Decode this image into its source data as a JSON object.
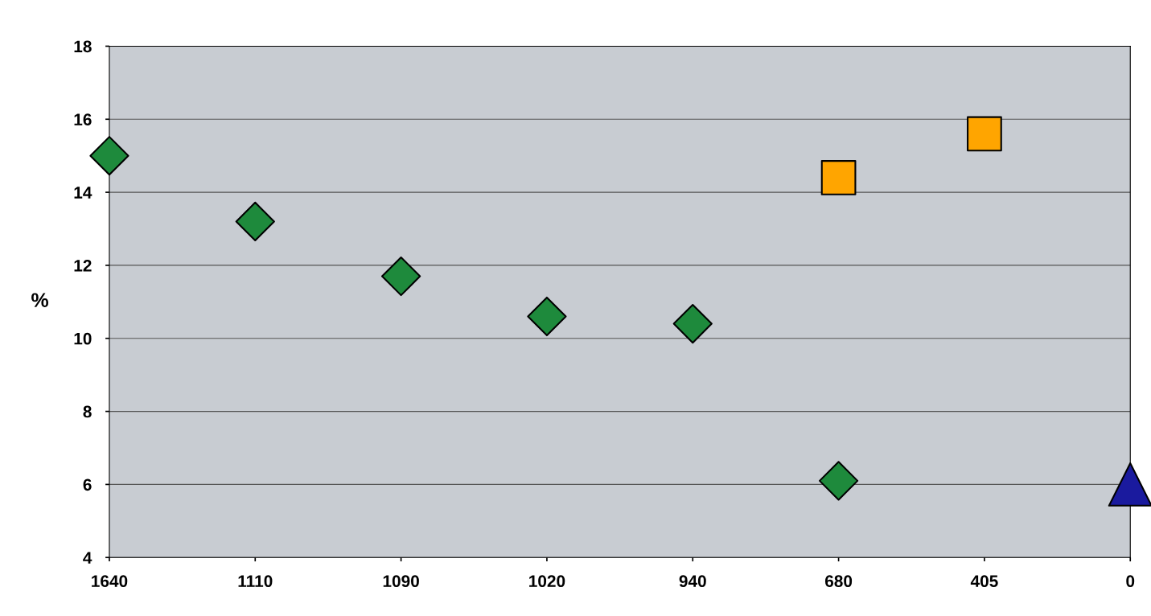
{
  "chart_data": {
    "type": "scatter",
    "ylabel": "%",
    "categories": [
      "1640",
      "1110",
      "1090",
      "1020",
      "940",
      "680",
      "405",
      "0"
    ],
    "series": [
      {
        "type": "scatter",
        "marker": "diamond",
        "color": "#1e8a3c",
        "values": [
          15.0,
          13.2,
          11.7,
          10.6,
          10.4,
          null,
          null,
          null
        ]
      },
      {
        "type": "scatter",
        "marker": "diamond",
        "color": "#1e8a3c",
        "values": [
          null,
          null,
          null,
          null,
          null,
          6.1,
          null,
          null
        ]
      },
      {
        "type": "scatter",
        "marker": "square",
        "color": "#ffa500",
        "values": [
          null,
          null,
          null,
          null,
          null,
          14.4,
          15.6,
          null
        ]
      },
      {
        "type": "scatter",
        "marker": "triangle",
        "color": "#1a1a9e",
        "values": [
          null,
          null,
          null,
          null,
          null,
          null,
          null,
          6.0
        ]
      }
    ],
    "ylim": [
      4,
      18
    ],
    "yticks": [
      4,
      6,
      8,
      10,
      12,
      14,
      16,
      18
    ],
    "grid": "y"
  }
}
